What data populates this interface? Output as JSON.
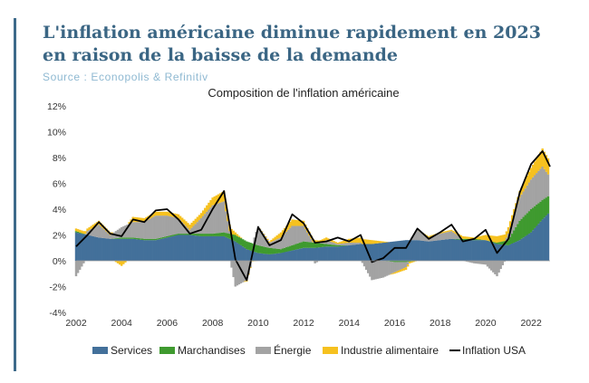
{
  "header": {
    "title": "L'inflation américaine diminue rapidement en 2023 en raison de la baisse de la demande",
    "source": "Source : Econopolis & Refinitiv"
  },
  "colors": {
    "accent": "#3d6a8a",
    "services": "#43709a",
    "marchandises": "#3f9a2f",
    "energie": "#a3a3a3",
    "alimentaire": "#f6c11f",
    "inflation": "#000000"
  },
  "chart_data": {
    "type": "area",
    "title": "Composition de l'inflation américaine",
    "xlabel": "",
    "ylabel": "",
    "x_range": [
      2002,
      2022.83
    ],
    "ylim": [
      -4,
      12
    ],
    "y_ticks": [
      -4,
      -2,
      0,
      2,
      4,
      6,
      8,
      10,
      12
    ],
    "y_tick_labels": [
      "-4%",
      "-2%",
      "0%",
      "2%",
      "4%",
      "6%",
      "8%",
      "10%",
      "12%"
    ],
    "x_ticks": [
      2002,
      2004,
      2006,
      2008,
      2010,
      2012,
      2014,
      2016,
      2018,
      2020,
      2022
    ],
    "x_tick_labels": [
      "2002",
      "2004",
      "2006",
      "2008",
      "2010",
      "2012",
      "2014",
      "2016",
      "2018",
      "2020",
      "2022"
    ],
    "grid": false,
    "legend_position": "bottom",
    "x": [
      2002,
      2002.5,
      2003,
      2003.5,
      2004,
      2004.5,
      2005,
      2005.5,
      2006,
      2006.5,
      2007,
      2007.5,
      2008,
      2008.5,
      2009,
      2009.5,
      2010,
      2010.5,
      2011,
      2011.5,
      2012,
      2012.5,
      2013,
      2013.5,
      2014,
      2014.5,
      2015,
      2015.5,
      2016,
      2016.5,
      2017,
      2017.5,
      2018,
      2018.5,
      2019,
      2019.5,
      2020,
      2020.5,
      2021,
      2021.5,
      2022,
      2022.5,
      2022.83
    ],
    "series": [
      {
        "name": "Services",
        "values": [
          2.2,
          2.0,
          1.8,
          1.7,
          1.7,
          1.7,
          1.6,
          1.6,
          1.8,
          2.0,
          2.0,
          1.9,
          1.9,
          1.9,
          1.5,
          0.9,
          0.6,
          0.5,
          0.6,
          0.8,
          1.0,
          1.0,
          1.1,
          1.1,
          1.2,
          1.3,
          1.3,
          1.4,
          1.5,
          1.6,
          1.6,
          1.5,
          1.6,
          1.7,
          1.6,
          1.6,
          1.6,
          1.3,
          1.2,
          1.6,
          2.2,
          3.2,
          3.8
        ]
      },
      {
        "name": "Marchandises",
        "values": [
          0.1,
          0.0,
          0.0,
          0.0,
          0.1,
          0.1,
          0.1,
          0.1,
          0.1,
          0.1,
          0.1,
          0.2,
          0.2,
          0.3,
          0.5,
          0.6,
          0.6,
          0.5,
          0.3,
          0.4,
          0.5,
          0.4,
          0.2,
          0.1,
          0.0,
          0.0,
          0.0,
          0.0,
          -0.1,
          -0.1,
          0.0,
          0.0,
          0.0,
          0.0,
          0.1,
          0.1,
          0.0,
          0.1,
          0.4,
          1.5,
          1.8,
          1.5,
          1.3
        ]
      },
      {
        "name": "Énergie",
        "values": [
          -1.2,
          0.3,
          1.0,
          0.3,
          0.8,
          1.2,
          1.3,
          1.8,
          1.6,
          1.2,
          0.3,
          1.2,
          2.2,
          2.4,
          -2.0,
          -1.5,
          1.5,
          0.4,
          0.9,
          1.5,
          1.2,
          -0.2,
          0.3,
          0.1,
          0.2,
          0.1,
          -1.5,
          -1.3,
          -0.8,
          -0.4,
          0.8,
          0.3,
          0.5,
          0.6,
          0.0,
          -0.2,
          -0.3,
          -1.2,
          0.5,
          1.8,
          2.3,
          2.6,
          1.4
        ]
      },
      {
        "name": "Industrie alimentaire",
        "values": [
          0.2,
          0.2,
          0.3,
          0.2,
          -0.4,
          0.4,
          0.3,
          0.3,
          0.3,
          0.3,
          0.4,
          0.4,
          0.6,
          0.8,
          0.2,
          -0.1,
          0.0,
          0.1,
          0.4,
          0.5,
          0.4,
          0.2,
          0.2,
          0.1,
          0.3,
          0.4,
          0.3,
          0.1,
          -0.1,
          -0.2,
          0.0,
          0.1,
          0.1,
          0.1,
          0.2,
          0.1,
          0.4,
          0.5,
          0.5,
          0.5,
          0.9,
          1.4,
          1.2
        ]
      },
      {
        "name": "Inflation USA",
        "values": [
          1.1,
          2.0,
          3.0,
          2.1,
          1.9,
          3.2,
          3.0,
          3.9,
          4.0,
          3.2,
          2.1,
          2.4,
          4.0,
          5.4,
          0.1,
          -1.5,
          2.6,
          1.2,
          1.6,
          3.6,
          2.9,
          1.4,
          1.5,
          1.8,
          1.5,
          2.0,
          -0.1,
          0.2,
          1.0,
          1.0,
          2.5,
          1.7,
          2.2,
          2.8,
          1.5,
          1.7,
          2.4,
          0.6,
          1.7,
          5.3,
          7.5,
          8.5,
          7.3
        ]
      }
    ]
  }
}
